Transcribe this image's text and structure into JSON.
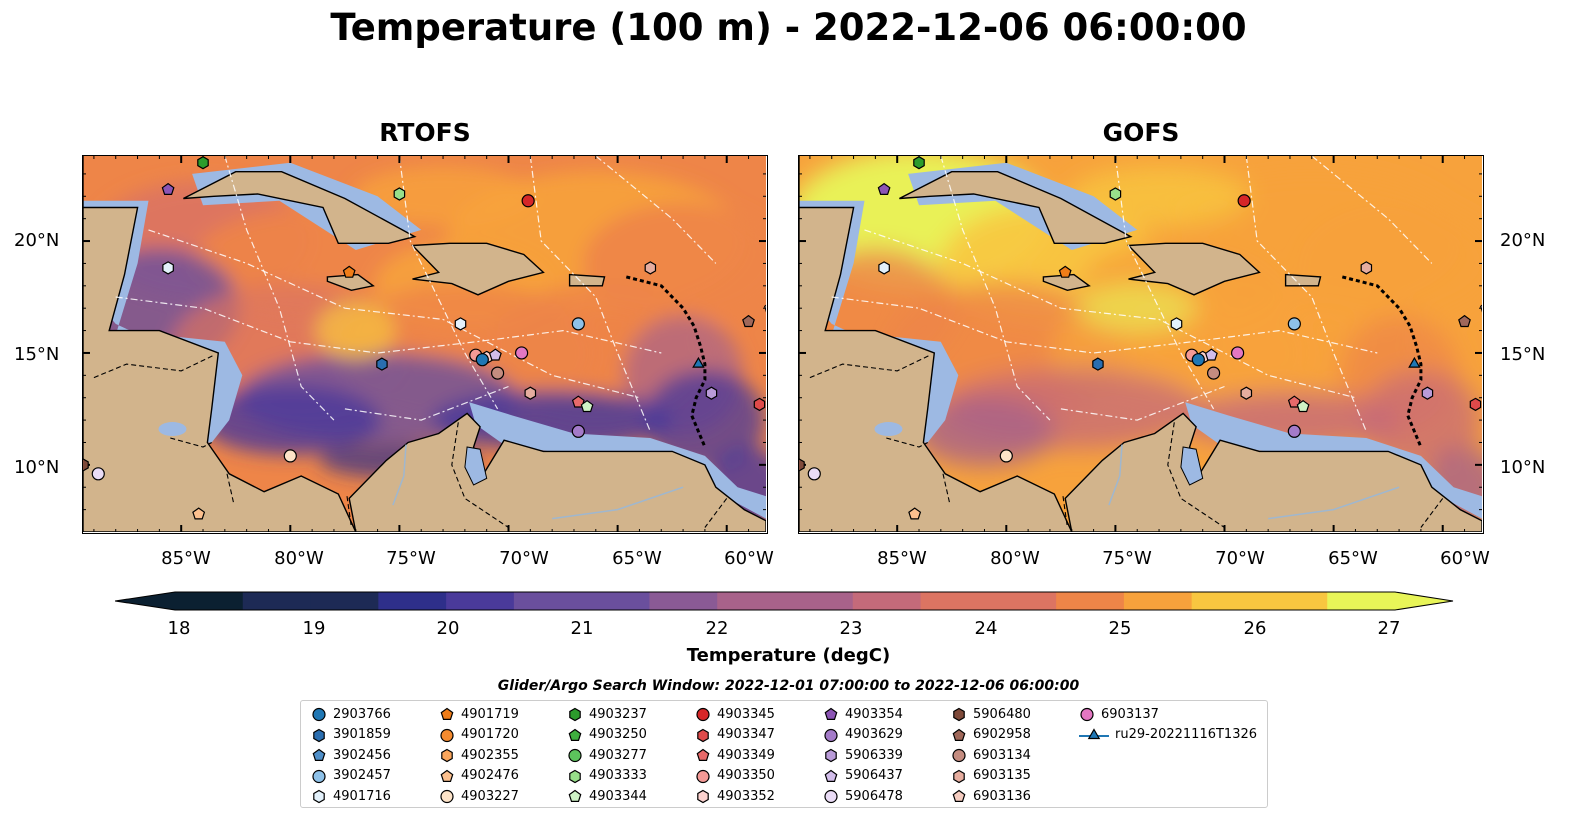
{
  "title": "Temperature (100 m) - 2022-12-06 06:00:00",
  "panels": [
    {
      "name": "RTOFS"
    },
    {
      "name": "GOFS"
    }
  ],
  "axes": {
    "lat_ticks": [
      "20°N",
      "15°N",
      "10°N"
    ],
    "lon_ticks": [
      "85°W",
      "80°W",
      "75°W",
      "70°W",
      "65°W",
      "60°W"
    ]
  },
  "colorbar": {
    "label": "Temperature (degC)",
    "ticks": [
      "18",
      "19",
      "20",
      "21",
      "22",
      "23",
      "24",
      "25",
      "26",
      "27"
    ],
    "min": 18,
    "max": 27,
    "extend": "both",
    "colormap": [
      "#0b2031",
      "#1d2a55",
      "#2e2f8a",
      "#4a3a9a",
      "#6a4f9d",
      "#8a5a95",
      "#a8628a",
      "#c46a7a",
      "#dc7462",
      "#ee8548",
      "#f7a23c",
      "#f8c640",
      "#e8f558"
    ]
  },
  "search_window": "Glider/Argo Search Window: 2022-12-01 07:00:00 to 2022-12-06 06:00:00",
  "legend": [
    {
      "id": "2903766",
      "marker": "circle",
      "color": "#1f77b4"
    },
    {
      "id": "3901859",
      "marker": "hexagon",
      "color": "#2a6eb0"
    },
    {
      "id": "3902456",
      "marker": "pentagon",
      "color": "#4f8fc9"
    },
    {
      "id": "3902457",
      "marker": "circle",
      "color": "#8ec1e8"
    },
    {
      "id": "4901716",
      "marker": "hexagon",
      "color": "#e3f1fb"
    },
    {
      "id": "4901719",
      "marker": "pentagon",
      "color": "#f07d18"
    },
    {
      "id": "4901720",
      "marker": "circle",
      "color": "#f58b2f"
    },
    {
      "id": "4902355",
      "marker": "hexagon",
      "color": "#fba65c"
    },
    {
      "id": "4902476",
      "marker": "pentagon",
      "color": "#fcc08e"
    },
    {
      "id": "4903227",
      "marker": "circle",
      "color": "#fde3c8"
    },
    {
      "id": "4903237",
      "marker": "hexagon",
      "color": "#2c9c2c"
    },
    {
      "id": "4903250",
      "marker": "pentagon",
      "color": "#3fae3f"
    },
    {
      "id": "4903277",
      "marker": "circle",
      "color": "#5cc35c"
    },
    {
      "id": "4903333",
      "marker": "hexagon",
      "color": "#98df8a"
    },
    {
      "id": "4903344",
      "marker": "pentagon",
      "color": "#cff3c6"
    },
    {
      "id": "4903345",
      "marker": "circle",
      "color": "#d62728"
    },
    {
      "id": "4903347",
      "marker": "hexagon",
      "color": "#df4a4a"
    },
    {
      "id": "4903349",
      "marker": "pentagon",
      "color": "#e86a6a"
    },
    {
      "id": "4903350",
      "marker": "circle",
      "color": "#f49a96"
    },
    {
      "id": "4903352",
      "marker": "hexagon",
      "color": "#fcd2cf"
    },
    {
      "id": "4903354",
      "marker": "pentagon",
      "color": "#8c55b5"
    },
    {
      "id": "4903629",
      "marker": "circle",
      "color": "#a47bc9"
    },
    {
      "id": "5906339",
      "marker": "hexagon",
      "color": "#b99bd8"
    },
    {
      "id": "5906437",
      "marker": "pentagon",
      "color": "#d2bdea"
    },
    {
      "id": "5906478",
      "marker": "circle",
      "color": "#eadcf6"
    },
    {
      "id": "5906480",
      "marker": "hexagon",
      "color": "#7f4a3a"
    },
    {
      "id": "6902958",
      "marker": "pentagon",
      "color": "#a0685a"
    },
    {
      "id": "6903134",
      "marker": "circle",
      "color": "#c48c80"
    },
    {
      "id": "6903135",
      "marker": "hexagon",
      "color": "#e6ad9f"
    },
    {
      "id": "6903136",
      "marker": "pentagon",
      "color": "#f5ccc0"
    },
    {
      "id": "6903137",
      "marker": "circle",
      "color": "#e377c2"
    },
    {
      "id": "ru29-20221116T1326",
      "marker": "triangle-line",
      "color": "#1f77b4"
    }
  ],
  "colors": {
    "land": "#d2b48c",
    "shelf_water": "#9db9e3",
    "pacific_deep": "#0b2031"
  }
}
